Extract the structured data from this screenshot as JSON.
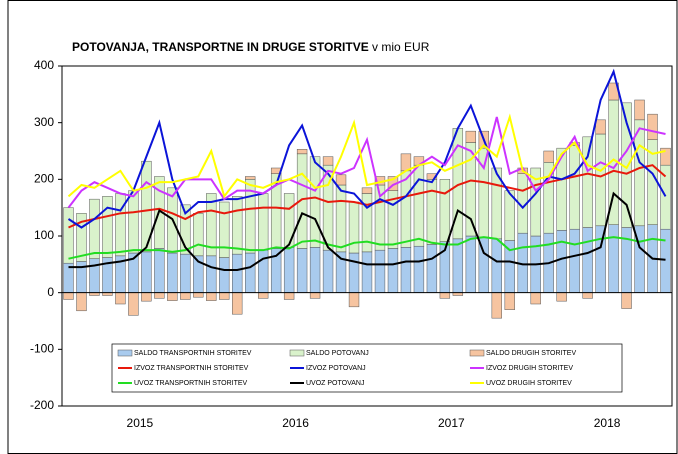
{
  "chart_data": {
    "type": "bar",
    "title": "POTOVANJA, TRANSPORTNE IN DRUGE STORITVE",
    "subtitle": "v mio EUR",
    "categories": [
      null,
      null,
      null,
      null,
      null,
      null,
      "2015",
      null,
      null,
      null,
      null,
      null,
      null,
      null,
      null,
      null,
      null,
      null,
      "2016",
      null,
      null,
      null,
      null,
      null,
      null,
      null,
      null,
      null,
      null,
      null,
      "2017",
      null,
      null,
      null,
      null,
      null,
      null,
      null,
      null,
      null,
      null,
      null,
      "2018",
      null,
      null,
      null,
      null
    ],
    "ylim": [
      -200,
      400
    ],
    "yticks": [
      -200,
      -100,
      0,
      100,
      200,
      300,
      400
    ],
    "legend": "bottom",
    "series": [
      {
        "name": "SALDO TRANSPORTNIH STORITEV",
        "type": "bar",
        "color": "#a9cbee",
        "values": [
          52,
          55,
          60,
          62,
          65,
          70,
          72,
          78,
          70,
          68,
          65,
          65,
          62,
          68,
          70,
          75,
          78,
          80,
          78,
          80,
          75,
          72,
          70,
          72,
          75,
          78,
          80,
          82,
          85,
          90,
          95,
          100,
          98,
          95,
          92,
          105,
          100,
          105,
          110,
          112,
          115,
          118,
          120,
          115,
          118,
          120,
          112
        ]
      },
      {
        "name": "SALDO POTOVANJ",
        "type": "bar",
        "color": "#d9f2cb",
        "values": [
          98,
          85,
          105,
          108,
          110,
          110,
          160,
          127,
          115,
          87,
          75,
          110,
          98,
          102,
          130,
          100,
          132,
          95,
          167,
          160,
          150,
          118,
          90,
          103,
          115,
          102,
          135,
          143,
          115,
          110,
          195,
          165,
          157,
          125,
          88,
          105,
          120,
          125,
          145,
          148,
          160,
          162,
          220,
          220,
          187,
          150,
          113
        ]
      },
      {
        "name": "SALDO DRUGIH STORITEV",
        "type": "bar",
        "color": "#f6c4a0",
        "values": [
          -12,
          -32,
          -5,
          -5,
          -20,
          -40,
          -15,
          -10,
          -14,
          -12,
          -8,
          -14,
          -12,
          -38,
          5,
          -10,
          10,
          -12,
          8,
          -10,
          15,
          18,
          -25,
          10,
          15,
          25,
          30,
          15,
          10,
          -10,
          -5,
          20,
          30,
          -45,
          -30,
          10,
          -20,
          20,
          -15,
          5,
          -10,
          25,
          30,
          -28,
          35,
          45,
          30
        ]
      },
      {
        "name": "IZVOZ TRANSPORTNIH STORITEV",
        "type": "line",
        "color": "#e8190c",
        "values": [
          115,
          125,
          130,
          135,
          140,
          142,
          145,
          148,
          140,
          130,
          142,
          145,
          140,
          145,
          148,
          150,
          150,
          148,
          165,
          168,
          160,
          162,
          160,
          155,
          160,
          165,
          170,
          175,
          180,
          175,
          190,
          198,
          195,
          190,
          185,
          180,
          190,
          195,
          200,
          205,
          210,
          205,
          215,
          210,
          220,
          225,
          205
        ]
      },
      {
        "name": "IZVOZ POTOVANJ",
        "type": "line",
        "color": "#0b14d8",
        "values": [
          130,
          115,
          130,
          150,
          145,
          180,
          240,
          300,
          200,
          140,
          160,
          160,
          165,
          165,
          170,
          175,
          190,
          260,
          295,
          230,
          210,
          180,
          175,
          150,
          165,
          155,
          170,
          200,
          195,
          230,
          290,
          330,
          270,
          210,
          175,
          150,
          175,
          205,
          200,
          210,
          240,
          340,
          390,
          300,
          230,
          210,
          170
        ]
      },
      {
        "name": "IZVOZ DRUGIH STORITEV",
        "type": "line",
        "color": "#cc33ff",
        "values": [
          150,
          180,
          195,
          185,
          175,
          170,
          195,
          180,
          170,
          200,
          200,
          200,
          165,
          180,
          180,
          175,
          190,
          200,
          190,
          180,
          215,
          210,
          220,
          270,
          170,
          190,
          200,
          225,
          240,
          225,
          260,
          250,
          220,
          310,
          210,
          220,
          180,
          200,
          240,
          275,
          215,
          230,
          220,
          250,
          290,
          285,
          280
        ]
      },
      {
        "name": "UVOZ TRANSPORTNIH STORITEV",
        "type": "line",
        "color": "#22dd22",
        "values": [
          60,
          65,
          70,
          70,
          72,
          75,
          75,
          75,
          72,
          75,
          85,
          80,
          80,
          78,
          75,
          75,
          80,
          78,
          90,
          92,
          85,
          80,
          88,
          90,
          85,
          85,
          90,
          95,
          88,
          85,
          85,
          95,
          98,
          95,
          75,
          80,
          82,
          85,
          90,
          85,
          90,
          95,
          98,
          95,
          90,
          95,
          92
        ]
      },
      {
        "name": "UVOZ POTOVANJ",
        "type": "line",
        "color": "#000000",
        "values": [
          45,
          45,
          48,
          52,
          55,
          60,
          80,
          145,
          130,
          80,
          55,
          45,
          40,
          40,
          45,
          60,
          65,
          85,
          140,
          130,
          80,
          60,
          55,
          50,
          50,
          50,
          55,
          55,
          60,
          75,
          145,
          130,
          70,
          55,
          55,
          50,
          50,
          52,
          60,
          65,
          70,
          80,
          175,
          155,
          80,
          60,
          58
        ]
      },
      {
        "name": "UVOZ DRUGIH STORITEV",
        "type": "line",
        "color": "#ffff00",
        "values": [
          170,
          190,
          185,
          200,
          215,
          180,
          185,
          195,
          195,
          200,
          205,
          250,
          170,
          200,
          190,
          185,
          195,
          200,
          210,
          185,
          190,
          240,
          300,
          190,
          195,
          200,
          215,
          225,
          230,
          215,
          225,
          235,
          260,
          240,
          310,
          215,
          200,
          205,
          245,
          265,
          225,
          215,
          235,
          220,
          260,
          245,
          250
        ]
      }
    ]
  }
}
